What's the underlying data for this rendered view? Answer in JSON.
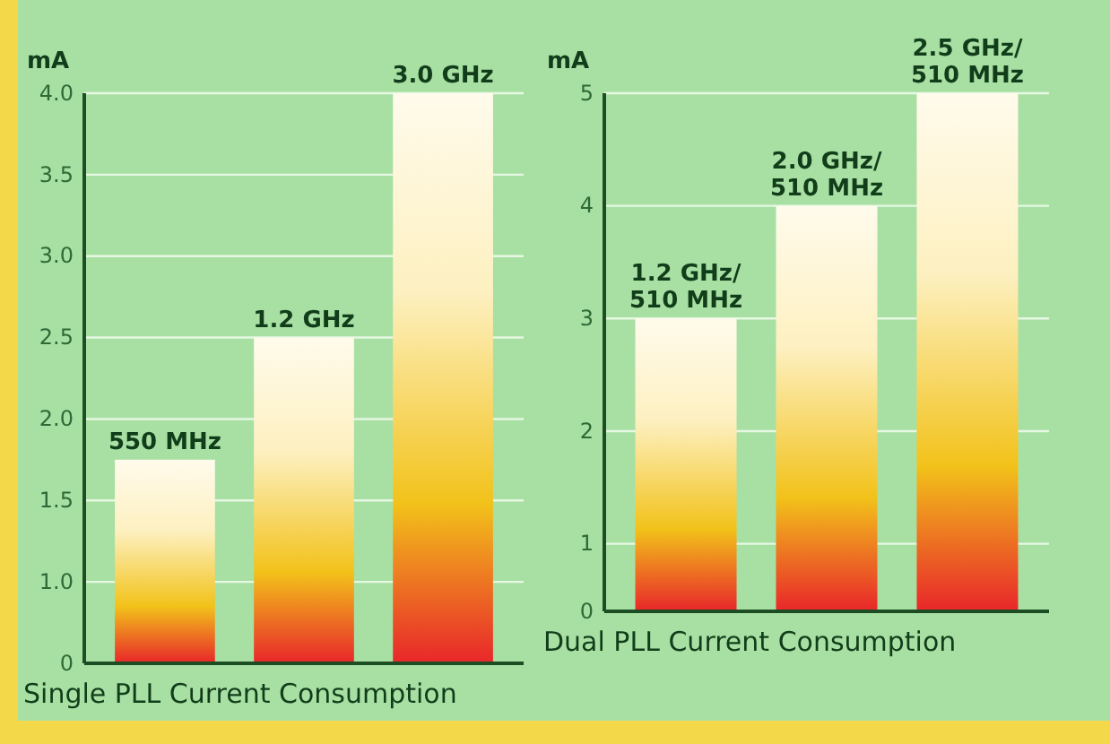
{
  "chart_data": [
    {
      "type": "bar",
      "xlabel": "Single PLL Current Consumption",
      "ylabel": "mA",
      "categories": [
        "550 MHz",
        "1.2 GHz",
        "3.0 GHz"
      ],
      "values": [
        1.75,
        2.5,
        4.0
      ],
      "color": "#f2c21a",
      "ylim": [
        0.5,
        4.0
      ],
      "yticks": [
        {
          "value": 0.5,
          "label": "0"
        },
        "1.0",
        1.5,
        "2.0",
        2.5,
        "3.0",
        3.5,
        "4.0"
      ],
      "grid": "y"
    },
    {
      "type": "bar",
      "xlabel": "Dual PLL Current Consumption",
      "ylabel": "mA",
      "categories": [
        "1.2 GHz/ 510 MHz",
        "2.0 GHz/ 510 MHz",
        "2.5 GHz/ 510 MHz"
      ],
      "values": [
        3,
        4,
        5
      ],
      "color": "#f2c21a",
      "ylim": [
        0.4,
        5
      ],
      "yticks": [
        {
          "value": 0.4,
          "label": "0"
        },
        1,
        2,
        3,
        4,
        5
      ],
      "grid": "y"
    }
  ]
}
